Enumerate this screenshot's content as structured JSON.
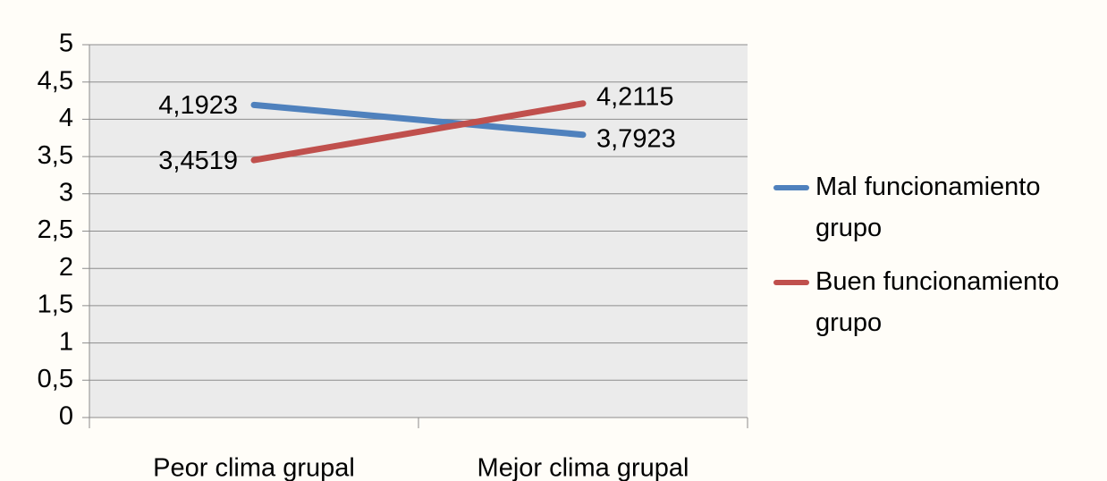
{
  "chart_data": {
    "type": "line",
    "categories": [
      "Peor clima grupal",
      "Mejor clima grupal"
    ],
    "series": [
      {
        "name": "Mal funcionamiento grupo",
        "color": "#4f81bd",
        "values": [
          4.1923,
          3.7923
        ],
        "value_labels": [
          "4,1923",
          "3,7923"
        ]
      },
      {
        "name": "Buen funcionamiento grupo",
        "color": "#c0504d",
        "values": [
          3.4519,
          4.2115
        ],
        "value_labels": [
          "3,4519",
          "4,2115"
        ]
      }
    ],
    "ylim": [
      0,
      5
    ],
    "yticks": [
      0,
      {
        "value": 0.5,
        "label": "0,5"
      },
      1,
      {
        "value": 1.5,
        "label": "1,5"
      },
      2,
      {
        "value": 2.5,
        "label": "2,5"
      },
      3,
      {
        "value": 3.5,
        "label": "3,5"
      },
      4,
      {
        "value": 4.5,
        "label": "4,5"
      },
      5
    ],
    "grid": true,
    "plot_background": "#ebebeb",
    "legend": "right"
  }
}
